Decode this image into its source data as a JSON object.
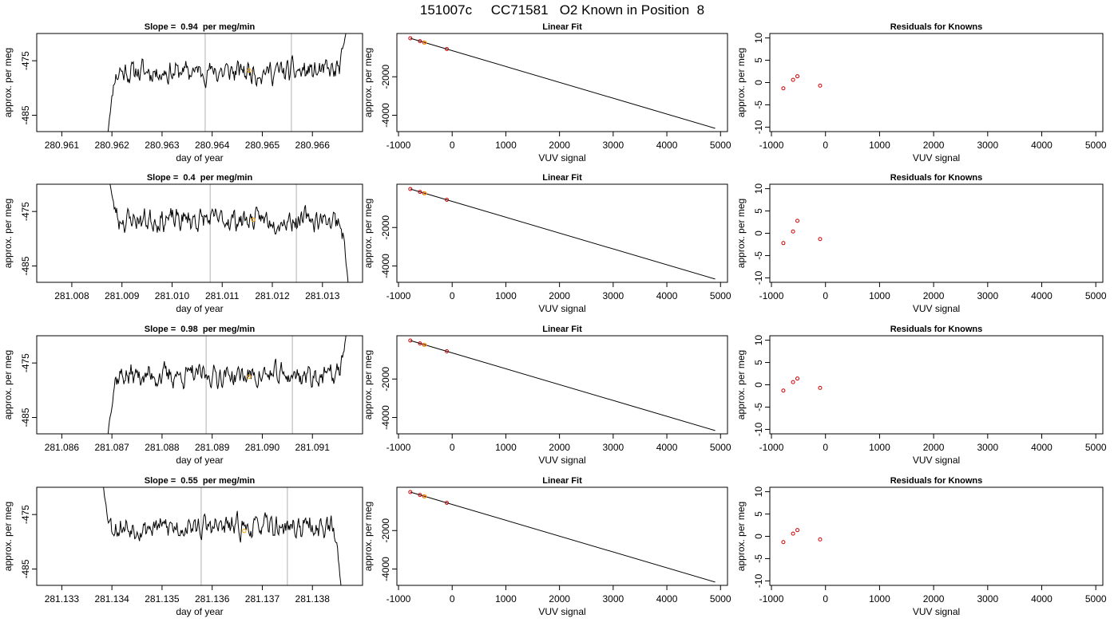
{
  "main_title": "151007c     CC71581   O2 Known in Position  8",
  "colors": {
    "trace": "#000000",
    "gridline": "#bebebe",
    "highlight": "#ffa500",
    "residual_point": "#cc0000",
    "frame": "#000000"
  },
  "chart_data": [
    {
      "type": "line",
      "row": 1,
      "title": "Slope =  0.94  per meg/min",
      "xlabel": "day of year",
      "ylabel": "approx. per meg",
      "xlim": [
        280.9605,
        280.967
      ],
      "ylim": [
        -488,
        -470
      ],
      "xticks": [
        280.961,
        280.962,
        280.963,
        280.964,
        280.965,
        280.966
      ],
      "xtick_labels": [
        "280.961",
        "280.962",
        "280.963",
        "280.964",
        "280.965",
        "280.966"
      ],
      "yticks": [
        -485,
        -475
      ],
      "ytick_labels": [
        "-485",
        "-475"
      ],
      "vlines": [
        280.96386,
        280.96558
      ],
      "highlight_point": [
        280.96474,
        -476.8
      ],
      "x_start": 280.96192,
      "x_end": 280.96668,
      "trace_start": -488.5,
      "trace_end": -469,
      "baseline": -477,
      "seed": 11
    },
    {
      "type": "scatter_line",
      "row": 1,
      "title": "Linear Fit",
      "xlabel": "VUV signal",
      "ylabel": "approx. per meg",
      "xlim": [
        -1030,
        5130
      ],
      "ylim": [
        -4850,
        250
      ],
      "xticks": [
        -1000,
        0,
        1000,
        2000,
        3000,
        4000,
        5000
      ],
      "xtick_labels": [
        "-1000",
        "0",
        "1000",
        "2000",
        "3000",
        "4000",
        "5000"
      ],
      "yticks": [
        -4000,
        -2000
      ],
      "ytick_labels": [
        "-4000",
        "-2000"
      ],
      "fit_line": [
        [
          -780,
          0
        ],
        [
          4900,
          -4680
        ]
      ],
      "points": [
        [
          -780,
          0
        ],
        [
          -600,
          -150
        ],
        [
          -520,
          -220
        ],
        [
          -100,
          -560
        ]
      ],
      "highlight_point": [
        -510,
        -225
      ]
    },
    {
      "type": "scatter",
      "row": 1,
      "title": "Residuals for Knowns",
      "xlabel": "VUV signal",
      "ylabel": "approx. per meg",
      "xlim": [
        -1030,
        5130
      ],
      "ylim": [
        -11,
        11
      ],
      "xticks": [
        -1000,
        0,
        1000,
        2000,
        3000,
        4000,
        5000
      ],
      "xtick_labels": [
        "-1000",
        "0",
        "1000",
        "2000",
        "3000",
        "4000",
        "5000"
      ],
      "yticks": [
        -10,
        -5,
        0,
        5,
        10
      ],
      "ytick_labels": [
        "-10",
        "-5",
        "0",
        "5",
        "10"
      ],
      "points": [
        [
          -780,
          -1.3
        ],
        [
          -600,
          0.6
        ],
        [
          -520,
          1.4
        ],
        [
          -100,
          -0.7
        ]
      ]
    },
    {
      "type": "line",
      "row": 2,
      "title": "Slope =  0.4  per meg/min",
      "xlabel": "day of year",
      "ylabel": "approx. per meg",
      "xlim": [
        281.0073,
        281.0138
      ],
      "ylim": [
        -488,
        -470
      ],
      "xticks": [
        281.008,
        281.009,
        281.01,
        281.011,
        281.012,
        281.013
      ],
      "xtick_labels": [
        "281.008",
        "281.009",
        "281.010",
        "281.011",
        "281.012",
        "281.013"
      ],
      "yticks": [
        -485,
        -475
      ],
      "ytick_labels": [
        "-485",
        "-475"
      ],
      "vlines": [
        281.01076,
        281.01248
      ],
      "highlight_point": [
        281.01162,
        -476.5
      ],
      "x_start": 281.00875,
      "x_end": 281.01352,
      "trace_start": -469,
      "trace_end": -489,
      "baseline": -476.5,
      "seed": 23
    },
    {
      "type": "scatter_line",
      "row": 2,
      "title": "Linear Fit",
      "xlabel": "VUV signal",
      "ylabel": "approx. per meg",
      "xlim": [
        -1030,
        5130
      ],
      "ylim": [
        -4850,
        250
      ],
      "xticks": [
        -1000,
        0,
        1000,
        2000,
        3000,
        4000,
        5000
      ],
      "xtick_labels": [
        "-1000",
        "0",
        "1000",
        "2000",
        "3000",
        "4000",
        "5000"
      ],
      "yticks": [
        -4000,
        -2000
      ],
      "ytick_labels": [
        "-4000",
        "-2000"
      ],
      "fit_line": [
        [
          -780,
          0
        ],
        [
          4900,
          -4680
        ]
      ],
      "points": [
        [
          -780,
          0
        ],
        [
          -600,
          -150
        ],
        [
          -520,
          -220
        ],
        [
          -100,
          -560
        ]
      ],
      "highlight_point": [
        -510,
        -225
      ]
    },
    {
      "type": "scatter",
      "row": 2,
      "title": "Residuals for Knowns",
      "xlabel": "VUV signal",
      "ylabel": "approx. per meg",
      "xlim": [
        -1030,
        5130
      ],
      "ylim": [
        -11,
        11
      ],
      "xticks": [
        -1000,
        0,
        1000,
        2000,
        3000,
        4000,
        5000
      ],
      "xtick_labels": [
        "-1000",
        "0",
        "1000",
        "2000",
        "3000",
        "4000",
        "5000"
      ],
      "yticks": [
        -10,
        -5,
        0,
        5,
        10
      ],
      "ytick_labels": [
        "-10",
        "-5",
        "0",
        "5",
        "10"
      ],
      "points": [
        [
          -780,
          -2.2
        ],
        [
          -600,
          0.4
        ],
        [
          -520,
          2.8
        ],
        [
          -100,
          -1.3
        ]
      ]
    },
    {
      "type": "line",
      "row": 3,
      "title": "Slope =  0.98  per meg/min",
      "xlabel": "day of year",
      "ylabel": "approx. per meg",
      "xlim": [
        281.0855,
        281.092
      ],
      "ylim": [
        -488,
        -470
      ],
      "xticks": [
        281.086,
        281.087,
        281.088,
        281.089,
        281.09,
        281.091
      ],
      "xtick_labels": [
        "281.086",
        "281.087",
        "281.088",
        "281.089",
        "281.090",
        "281.091"
      ],
      "yticks": [
        -485,
        -475
      ],
      "ytick_labels": [
        "-485",
        "-475"
      ],
      "vlines": [
        281.08888,
        281.0906
      ],
      "highlight_point": [
        281.08974,
        -477.5
      ],
      "x_start": 281.08692,
      "x_end": 281.09168,
      "trace_start": -488.5,
      "trace_end": -469,
      "baseline": -477.3,
      "seed": 37
    },
    {
      "type": "scatter_line",
      "row": 3,
      "title": "Linear Fit",
      "xlabel": "VUV signal",
      "ylabel": "approx. per meg",
      "xlim": [
        -1030,
        5130
      ],
      "ylim": [
        -4850,
        250
      ],
      "xticks": [
        -1000,
        0,
        1000,
        2000,
        3000,
        4000,
        5000
      ],
      "xtick_labels": [
        "-1000",
        "0",
        "1000",
        "2000",
        "3000",
        "4000",
        "5000"
      ],
      "yticks": [
        -4000,
        -2000
      ],
      "ytick_labels": [
        "-4000",
        "-2000"
      ],
      "fit_line": [
        [
          -780,
          0
        ],
        [
          4900,
          -4680
        ]
      ],
      "points": [
        [
          -780,
          0
        ],
        [
          -600,
          -150
        ],
        [
          -520,
          -220
        ],
        [
          -100,
          -560
        ]
      ],
      "highlight_point": [
        -510,
        -225
      ]
    },
    {
      "type": "scatter",
      "row": 3,
      "title": "Residuals for Knowns",
      "xlabel": "VUV signal",
      "ylabel": "approx. per meg",
      "xlim": [
        -1030,
        5130
      ],
      "ylim": [
        -11,
        11
      ],
      "xticks": [
        -1000,
        0,
        1000,
        2000,
        3000,
        4000,
        5000
      ],
      "xtick_labels": [
        "-1000",
        "0",
        "1000",
        "2000",
        "3000",
        "4000",
        "5000"
      ],
      "yticks": [
        -10,
        -5,
        0,
        5,
        10
      ],
      "ytick_labels": [
        "-10",
        "-5",
        "0",
        "5",
        "10"
      ],
      "points": [
        [
          -780,
          -1.3
        ],
        [
          -600,
          0.6
        ],
        [
          -520,
          1.4
        ],
        [
          -100,
          -0.7
        ]
      ]
    },
    {
      "type": "line",
      "row": 4,
      "title": "Slope =  0.55  per meg/min",
      "xlabel": "day of year",
      "ylabel": "approx. per meg",
      "xlim": [
        281.1325,
        281.139
      ],
      "ylim": [
        -488,
        -470
      ],
      "xticks": [
        281.133,
        281.134,
        281.135,
        281.136,
        281.137,
        281.138
      ],
      "xtick_labels": [
        "281.133",
        "281.134",
        "281.135",
        "281.136",
        "281.137",
        "281.138"
      ],
      "yticks": [
        -485,
        -475
      ],
      "ytick_labels": [
        "-485",
        "-475"
      ],
      "vlines": [
        281.13578,
        281.1375
      ],
      "highlight_point": [
        281.13664,
        -478
      ],
      "x_start": 281.13382,
      "x_end": 281.13858,
      "trace_start": -469,
      "trace_end": -489,
      "baseline": -477.3,
      "seed": 53
    },
    {
      "type": "scatter_line",
      "row": 4,
      "title": "Linear Fit",
      "xlabel": "VUV signal",
      "ylabel": "approx. per meg",
      "xlim": [
        -1030,
        5130
      ],
      "ylim": [
        -4850,
        250
      ],
      "xticks": [
        -1000,
        0,
        1000,
        2000,
        3000,
        4000,
        5000
      ],
      "xtick_labels": [
        "-1000",
        "0",
        "1000",
        "2000",
        "3000",
        "4000",
        "5000"
      ],
      "yticks": [
        -4000,
        -2000
      ],
      "ytick_labels": [
        "-4000",
        "-2000"
      ],
      "fit_line": [
        [
          -780,
          0
        ],
        [
          4900,
          -4680
        ]
      ],
      "points": [
        [
          -780,
          0
        ],
        [
          -600,
          -150
        ],
        [
          -520,
          -220
        ],
        [
          -100,
          -560
        ]
      ],
      "highlight_point": [
        -510,
        -225
      ]
    },
    {
      "type": "scatter",
      "row": 4,
      "title": "Residuals for Knowns",
      "xlabel": "VUV signal",
      "ylabel": "approx. per meg",
      "xlim": [
        -1030,
        5130
      ],
      "ylim": [
        -11,
        11
      ],
      "xticks": [
        -1000,
        0,
        1000,
        2000,
        3000,
        4000,
        5000
      ],
      "xtick_labels": [
        "-1000",
        "0",
        "1000",
        "2000",
        "3000",
        "4000",
        "5000"
      ],
      "yticks": [
        -10,
        -5,
        0,
        5,
        10
      ],
      "ytick_labels": [
        "-10",
        "-5",
        "0",
        "5",
        "10"
      ],
      "points": [
        [
          -780,
          -1.3
        ],
        [
          -600,
          0.6
        ],
        [
          -520,
          1.4
        ],
        [
          -100,
          -0.7
        ]
      ]
    }
  ]
}
